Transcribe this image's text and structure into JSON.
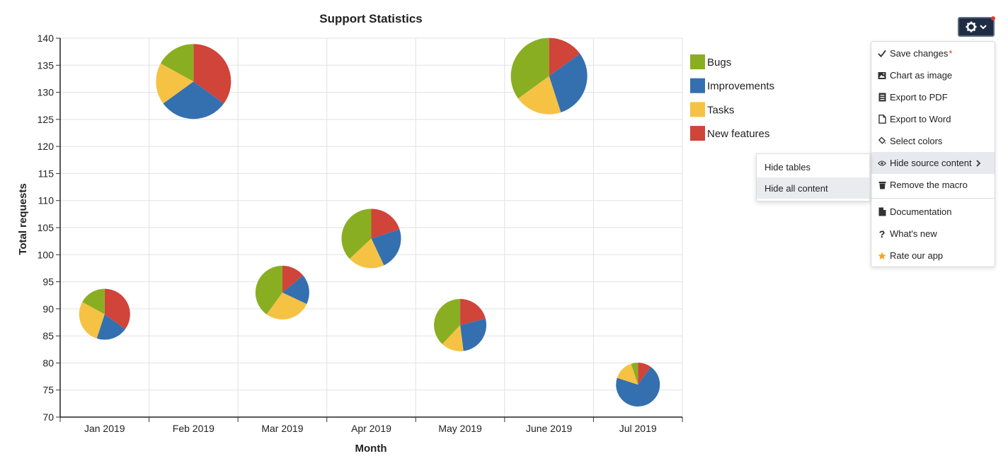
{
  "chart_data": {
    "type": "bubble-pie",
    "title": "Support Statistics",
    "xlabel": "Month",
    "ylabel": "Total requests",
    "ylim": [
      70,
      140
    ],
    "yticks": [
      "70",
      "75",
      "80",
      "85",
      "90",
      "95",
      "100",
      "105",
      "110",
      "115",
      "120",
      "125",
      "130",
      "135",
      "140"
    ],
    "categories": [
      "Jan 2019",
      "Feb 2019",
      "Mar 2019",
      "Apr 2019",
      "May 2019",
      "June 2019",
      "Jul 2019"
    ],
    "series": [
      {
        "name": "Bugs",
        "color": "#8aae21"
      },
      {
        "name": "Improvements",
        "color": "#3470af"
      },
      {
        "name": "Tasks",
        "color": "#f6c244"
      },
      {
        "name": "New features",
        "color": "#d0443a"
      }
    ],
    "points": [
      {
        "category": "Jan 2019",
        "total": 89,
        "size": 36,
        "slices": [
          17,
          20,
          28,
          35
        ]
      },
      {
        "category": "Feb 2019",
        "total": 132,
        "size": 53,
        "slices": [
          17,
          30,
          18,
          35
        ]
      },
      {
        "category": "Mar 2019",
        "total": 93,
        "size": 38,
        "slices": [
          40,
          18,
          28,
          14
        ]
      },
      {
        "category": "Apr 2019",
        "total": 103,
        "size": 42,
        "slices": [
          37,
          23,
          20,
          20
        ]
      },
      {
        "category": "May 2019",
        "total": 87,
        "size": 37,
        "slices": [
          38,
          27,
          14,
          21
        ]
      },
      {
        "category": "June 2019",
        "total": 133,
        "size": 54,
        "slices": [
          35,
          30,
          20,
          15
        ]
      },
      {
        "category": "Jul 2019",
        "total": 76,
        "size": 31,
        "slices": [
          5,
          70,
          15,
          10
        ]
      }
    ]
  },
  "toolbar": {
    "gear_icon": "gear-icon",
    "chevron_icon": "chevron-down-icon"
  },
  "menu": {
    "items": [
      {
        "label": "Save changes",
        "icon": "check-icon",
        "star": "*"
      },
      {
        "label": "Chart as image",
        "icon": "image-icon"
      },
      {
        "label": "Export to PDF",
        "icon": "pdf-icon"
      },
      {
        "label": "Export to Word",
        "icon": "word-icon"
      },
      {
        "label": "Select colors",
        "icon": "paint-bucket-icon"
      },
      {
        "label": "Hide source content",
        "icon": "eye-icon"
      },
      {
        "label": "Remove the macro",
        "icon": "trash-icon"
      },
      {
        "label": "Documentation",
        "icon": "document-icon"
      },
      {
        "label": "What's new",
        "icon": "question-icon"
      },
      {
        "label": "Rate our app",
        "icon": "star-icon",
        "color": "#f5a623"
      }
    ]
  },
  "submenu": {
    "items": [
      {
        "label": "Hide tables"
      },
      {
        "label": "Hide all content"
      }
    ]
  }
}
